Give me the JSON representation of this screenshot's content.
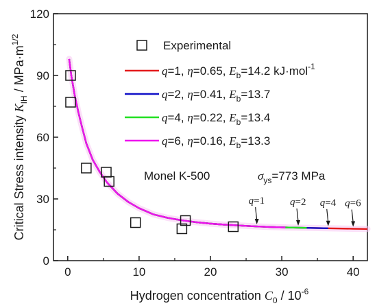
{
  "chart_data": {
    "type": "scatter",
    "xlabel": {
      "main": "Hydrogen concentration ",
      "sym": "C",
      "sub": "0",
      "tail": " / 10",
      "sup": "-6"
    },
    "ylabel": {
      "main": "Critical Stress intensity ",
      "sym": "K",
      "sub": "IH",
      "tail": " / MPa·m",
      "sup": "1/2"
    },
    "xlim": [
      -2,
      42
    ],
    "ylim": [
      0,
      120
    ],
    "x_ticks": [
      0,
      10,
      20,
      30,
      40
    ],
    "y_ticks": [
      0,
      30,
      60,
      90,
      120
    ],
    "grid": false,
    "legend_position": "top-center",
    "experimental": {
      "name": "Experimental",
      "points": [
        {
          "x": 0.4,
          "y": 90
        },
        {
          "x": 0.4,
          "y": 77
        },
        {
          "x": 2.6,
          "y": 45
        },
        {
          "x": 5.4,
          "y": 43
        },
        {
          "x": 5.8,
          "y": 38.5
        },
        {
          "x": 9.5,
          "y": 18.5
        },
        {
          "x": 16.0,
          "y": 15.5
        },
        {
          "x": 16.5,
          "y": 19.5
        },
        {
          "x": 23.2,
          "y": 16.5
        }
      ]
    },
    "series": [
      {
        "q": "1",
        "eta": "0.65",
        "Eb": "14.2 kJ·mol",
        "Eb_sup": "-1",
        "color": "#e41a1c",
        "x_end": 42,
        "arrow_label": "q",
        "arrow_value": "=1",
        "arrow_at": 26.5
      },
      {
        "q": "2",
        "eta": "0.41",
        "Eb": "13.7",
        "Eb_sup": "",
        "color": "#1010c8",
        "x_end": 36.5,
        "arrow_label": "q",
        "arrow_value": "=2",
        "arrow_at": 32.3
      },
      {
        "q": "4",
        "eta": "0.22",
        "Eb": "13.4",
        "Eb_sup": "",
        "color": "#22e022",
        "x_end": 33.5,
        "arrow_label": "q",
        "arrow_value": "=4",
        "arrow_at": 36.5
      },
      {
        "q": "6",
        "eta": "0.16",
        "Eb": "13.3",
        "Eb_sup": "",
        "color": "#ee11ee",
        "x_end": 30.5,
        "arrow_label": "q",
        "arrow_value": "=6",
        "arrow_at": 40.0
      }
    ],
    "model_curve": {
      "x_start": 0.2,
      "points": [
        [
          0.2,
          98
        ],
        [
          0.5,
          90
        ],
        [
          1,
          80
        ],
        [
          1.5,
          72
        ],
        [
          2,
          65
        ],
        [
          2.6,
          57
        ],
        [
          3.5,
          49
        ],
        [
          4.5,
          43
        ],
        [
          5.5,
          38
        ],
        [
          7,
          32.5
        ],
        [
          8.5,
          28.5
        ],
        [
          10,
          25.5
        ],
        [
          12,
          22.5
        ],
        [
          14,
          20.8
        ],
        [
          16,
          19.6
        ],
        [
          18,
          18.7
        ],
        [
          20,
          18
        ],
        [
          22,
          17.5
        ],
        [
          25,
          16.9
        ],
        [
          28,
          16.4
        ],
        [
          31,
          16.1
        ],
        [
          34,
          15.9
        ],
        [
          37,
          15.7
        ],
        [
          40,
          15.5
        ],
        [
          42,
          15.4
        ]
      ]
    },
    "annotations": {
      "material": "Monel K-500",
      "yield_sym": "σ",
      "yield_sub": "ys",
      "yield_val": "=773 MPa"
    }
  }
}
